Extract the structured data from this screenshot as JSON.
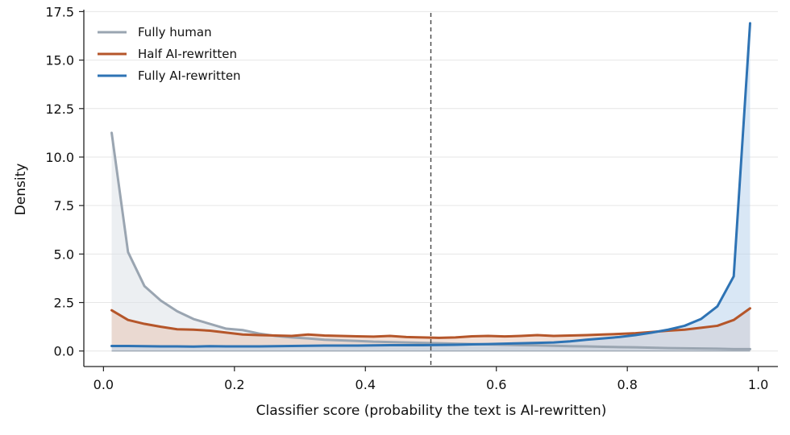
{
  "chart_data": {
    "type": "area",
    "xlabel": "Classifier score (probability the text is AI-rewritten)",
    "ylabel": "Density",
    "xlim": [
      -0.03,
      1.03
    ],
    "ylim": [
      -0.8,
      17.6
    ],
    "x_ticks": [
      0.0,
      0.2,
      0.4,
      0.6,
      0.8,
      1.0
    ],
    "x_tick_labels": [
      "0.0",
      "0.2",
      "0.4",
      "0.6",
      "0.8",
      "1.0"
    ],
    "y_ticks": [
      0.0,
      2.5,
      5.0,
      7.5,
      10.0,
      12.5,
      15.0,
      17.5
    ],
    "y_tick_labels": [
      "0.0",
      "2.5",
      "5.0",
      "7.5",
      "10.0",
      "12.5",
      "15.0",
      "17.5"
    ],
    "grid": "horizontal",
    "legend_position": "top-left",
    "threshold_line": 0.5,
    "x": [
      0.0125,
      0.0375,
      0.0625,
      0.0875,
      0.1125,
      0.1375,
      0.1625,
      0.1875,
      0.2125,
      0.2375,
      0.2625,
      0.2875,
      0.3125,
      0.3375,
      0.3625,
      0.3875,
      0.4125,
      0.4375,
      0.4625,
      0.4875,
      0.5125,
      0.5375,
      0.5625,
      0.5875,
      0.6125,
      0.6375,
      0.6625,
      0.6875,
      0.7125,
      0.7375,
      0.7625,
      0.7875,
      0.8125,
      0.8375,
      0.8625,
      0.8875,
      0.9125,
      0.9375,
      0.9625,
      0.9875
    ],
    "series": [
      {
        "name": "Fully human",
        "color": "#9aa5b1",
        "fill": "#dde2e7",
        "values": [
          11.25,
          5.1,
          3.35,
          2.6,
          2.05,
          1.65,
          1.4,
          1.15,
          1.08,
          0.9,
          0.78,
          0.7,
          0.65,
          0.58,
          0.55,
          0.52,
          0.48,
          0.46,
          0.44,
          0.42,
          0.4,
          0.38,
          0.36,
          0.34,
          0.32,
          0.3,
          0.29,
          0.27,
          0.25,
          0.24,
          0.22,
          0.2,
          0.19,
          0.17,
          0.15,
          0.14,
          0.13,
          0.12,
          0.1,
          0.1
        ]
      },
      {
        "name": "Half AI-rewritten",
        "color": "#b5562a",
        "fill": "#e9c7b7",
        "values": [
          2.1,
          1.6,
          1.4,
          1.25,
          1.12,
          1.1,
          1.05,
          0.95,
          0.85,
          0.82,
          0.8,
          0.78,
          0.85,
          0.8,
          0.78,
          0.76,
          0.74,
          0.78,
          0.72,
          0.7,
          0.68,
          0.7,
          0.76,
          0.78,
          0.75,
          0.78,
          0.82,
          0.78,
          0.8,
          0.82,
          0.85,
          0.88,
          0.92,
          0.98,
          1.05,
          1.1,
          1.2,
          1.3,
          1.6,
          2.2
        ]
      },
      {
        "name": "Fully AI-rewritten",
        "color": "#2e73b4",
        "fill": "#b9d3ec",
        "values": [
          0.26,
          0.26,
          0.25,
          0.24,
          0.24,
          0.23,
          0.25,
          0.24,
          0.24,
          0.24,
          0.25,
          0.26,
          0.27,
          0.28,
          0.28,
          0.28,
          0.29,
          0.3,
          0.3,
          0.3,
          0.31,
          0.32,
          0.34,
          0.36,
          0.38,
          0.4,
          0.42,
          0.44,
          0.5,
          0.58,
          0.65,
          0.72,
          0.82,
          0.95,
          1.1,
          1.3,
          1.65,
          2.3,
          3.85,
          16.9
        ]
      }
    ]
  }
}
